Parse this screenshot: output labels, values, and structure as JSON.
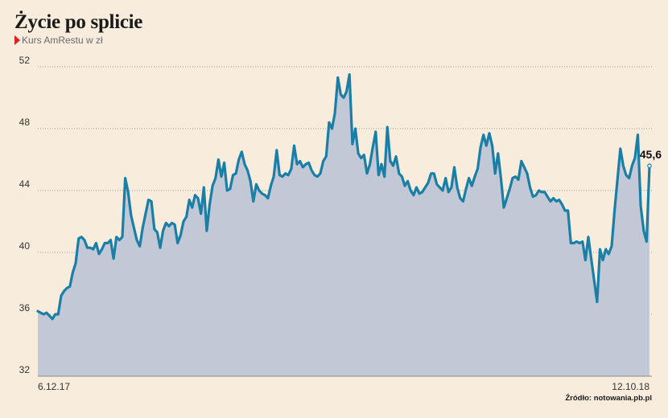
{
  "title": "Życie po splicie",
  "subtitle": "Kurs AmRestu w zł",
  "source": "Źródło: notowania.pb.pl",
  "colors": {
    "line": "#1a7fa6",
    "area": "#c3c8d6",
    "background": "#f8ecdd",
    "accent": "#e31b23"
  },
  "chart_data": {
    "type": "area",
    "ylim": [
      32,
      52
    ],
    "y_ticks": [
      32,
      36,
      40,
      44,
      48,
      52
    ],
    "x_labels": [
      "6.12.17",
      "12.10.18"
    ],
    "last_value_label": "45,6",
    "grid": true,
    "values": [
      36.2,
      36.1,
      36.0,
      36.1,
      35.9,
      35.7,
      36.0,
      36.0,
      37.2,
      37.5,
      37.7,
      37.8,
      38.7,
      39.3,
      40.9,
      41.0,
      40.8,
      40.3,
      40.3,
      40.2,
      40.6,
      39.9,
      40.2,
      40.6,
      40.6,
      40.8,
      39.6,
      41.0,
      40.8,
      41.0,
      44.8,
      43.9,
      42.4,
      41.6,
      40.8,
      40.4,
      41.6,
      42.5,
      43.4,
      43.3,
      41.5,
      41.3,
      40.3,
      41.4,
      41.9,
      41.7,
      41.9,
      41.8,
      40.6,
      41.1,
      42.0,
      42.3,
      43.4,
      42.9,
      43.7,
      43.5,
      42.5,
      44.2,
      41.4,
      43.1,
      44.3,
      44.8,
      46.0,
      44.9,
      45.8,
      44.0,
      44.1,
      45.0,
      45.1,
      46.0,
      46.5,
      45.7,
      45.3,
      44.6,
      43.3,
      44.4,
      44.0,
      43.8,
      43.7,
      43.5,
      44.3,
      44.9,
      46.6,
      45.0,
      44.9,
      45.1,
      45.0,
      45.4,
      46.9,
      45.7,
      45.9,
      45.5,
      45.7,
      45.8,
      45.3,
      45.0,
      44.9,
      45.1,
      45.9,
      46.2,
      48.4,
      48.0,
      49.0,
      51.3,
      50.2,
      50.0,
      50.4,
      51.5,
      47.0,
      48.0,
      46.4,
      46.1,
      46.3,
      45.1,
      45.7,
      46.8,
      47.8,
      45.0,
      45.7,
      44.9,
      48.1,
      45.9,
      45.6,
      46.2,
      45.1,
      44.9,
      44.3,
      44.6,
      44.0,
      43.7,
      44.2,
      43.8,
      43.9,
      44.2,
      44.5,
      45.1,
      45.1,
      44.4,
      44.2,
      44.0,
      44.8,
      43.9,
      44.2,
      45.5,
      44.2,
      43.5,
      43.3,
      44.1,
      44.8,
      44.3,
      44.9,
      45.4,
      46.8,
      47.6,
      46.9,
      47.7,
      46.9,
      45.1,
      46.4,
      44.8,
      42.9,
      43.5,
      44.1,
      44.8,
      44.9,
      44.7,
      45.9,
      45.5,
      45.1,
      44.2,
      43.6,
      43.7,
      44.0,
      43.9,
      43.9,
      43.6,
      43.3,
      43.5,
      43.3,
      43.4,
      43.1,
      42.7,
      42.7,
      40.6,
      40.6,
      40.7,
      40.6,
      40.7,
      39.5,
      41.0,
      39.6,
      38.2,
      36.8,
      40.2,
      39.5,
      40.2,
      39.9,
      40.4,
      42.7,
      44.7,
      46.7,
      45.6,
      45.0,
      44.8,
      45.6,
      46.1,
      47.6,
      43.0,
      41.4,
      40.7,
      45.6
    ]
  }
}
